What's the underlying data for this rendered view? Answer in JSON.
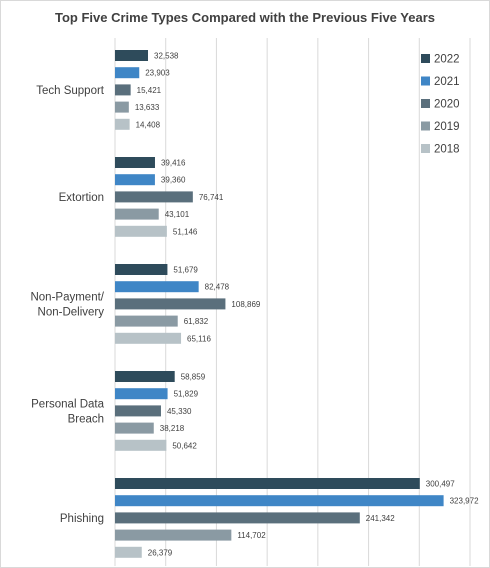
{
  "chart_data": {
    "type": "bar",
    "orientation": "horizontal",
    "title": "Top Five Crime Types Compared with the Previous Five Years",
    "xlabel": "",
    "ylabel": "",
    "categories": [
      [
        "Tech Support"
      ],
      [
        "Extortion"
      ],
      [
        "Non-Payment/",
        "Non-Delivery"
      ],
      [
        "Personal Data",
        "Breach"
      ],
      [
        "Phishing"
      ]
    ],
    "series": [
      {
        "name": "2022",
        "color": "#2e4b5b",
        "values": [
          32538,
          39416,
          51679,
          58859,
          300497
        ],
        "labels": [
          "32,538",
          "39,416",
          "51,679",
          "58,859",
          "300,497"
        ]
      },
      {
        "name": "2021",
        "color": "#3f86c6",
        "values": [
          23903,
          39360,
          82478,
          51829,
          323972
        ],
        "labels": [
          "23,903",
          "39,360",
          "82,478",
          "51,829",
          "323,972"
        ]
      },
      {
        "name": "2020",
        "color": "#5a6f7c",
        "values": [
          15421,
          76741,
          108869,
          45330,
          241342
        ],
        "labels": [
          "15,421",
          "76,741",
          "108,869",
          "45,330",
          "241,342"
        ]
      },
      {
        "name": "2019",
        "color": "#8a9aa3",
        "values": [
          13633,
          43101,
          61832,
          38218,
          114702
        ],
        "labels": [
          "13,633",
          "43,101",
          "61,832",
          "38,218",
          "114,702"
        ]
      },
      {
        "name": "2018",
        "color": "#b7c2c7",
        "values": [
          14408,
          51146,
          65116,
          50642,
          26379
        ],
        "labels": [
          "14,408",
          "51,146",
          "65,116",
          "50,642",
          "26,379"
        ]
      }
    ],
    "xlim": [
      0,
      350000
    ],
    "grid": true,
    "legend_position": "top-right"
  }
}
